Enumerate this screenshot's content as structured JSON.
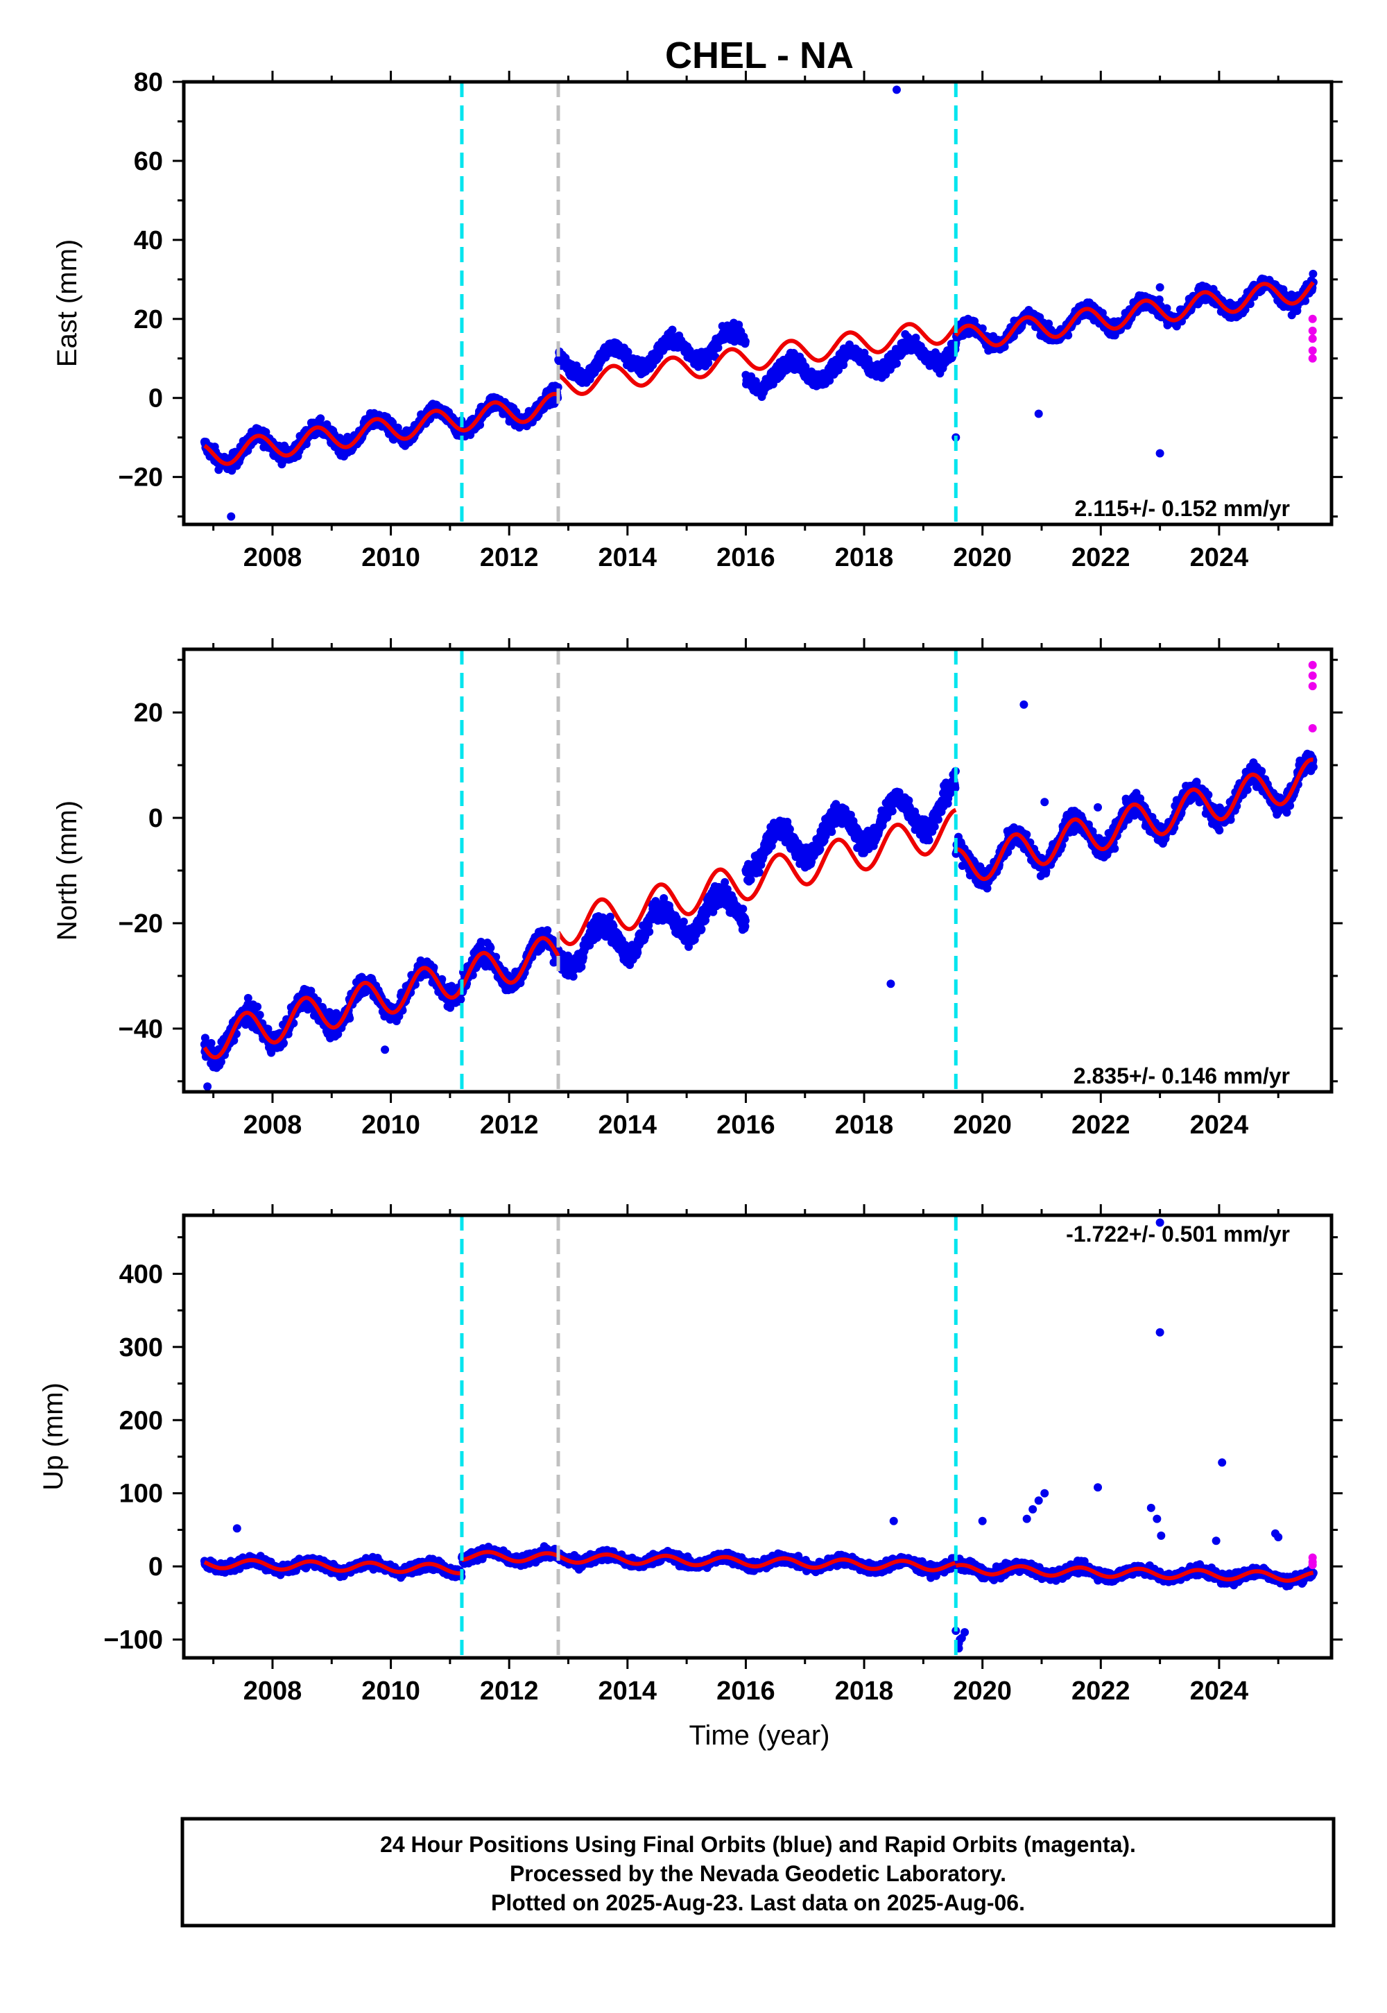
{
  "title": "CHEL - NA",
  "colors": {
    "final_orbits": "#0000ee",
    "rapid_orbits": "#ee00ee",
    "model": "#ee0000",
    "equipment_change": "#00e5ee",
    "other_event": "#c0c0c0"
  },
  "xlabel": "Time (year)",
  "x_ticks": [
    "2008",
    "2010",
    "2012",
    "2014",
    "2016",
    "2018",
    "2020",
    "2022",
    "2024"
  ],
  "footer": {
    "line1": "24 Hour Positions Using Final Orbits (blue) and Rapid Orbits (magenta).",
    "line2": "Processed by the Nevada Geodetic Laboratory.",
    "line3": "Plotted on 2025-Aug-23. Last data on 2025-Aug-06."
  },
  "chart_data": [
    {
      "type": "scatter",
      "ylabel": "East (mm)",
      "xlim": [
        2006.5,
        2025.9
      ],
      "ylim": [
        -32,
        80
      ],
      "y_ticks": [
        "80",
        "60",
        "40",
        "20",
        "0",
        "−20"
      ],
      "y_tick_values": [
        80,
        60,
        40,
        20,
        0,
        -20
      ],
      "rate": "2.115+/- 0.152 mm/yr",
      "rate_position": "bottom-right",
      "events": [
        {
          "x": 2011.2,
          "kind": "equipment_change"
        },
        {
          "x": 2012.83,
          "kind": "other_event"
        },
        {
          "x": 2019.55,
          "kind": "equipment_change"
        }
      ],
      "trend_segments": [
        {
          "x": [
            2006.85,
            2012.83
          ],
          "mean": -14.5,
          "rate": 2.115,
          "annual_amp": 3.0,
          "phase": 2006.5
        },
        {
          "x": [
            2012.83,
            2019.55
          ],
          "mean": -9.5,
          "rate": 2.115,
          "annual_amp": 3.0,
          "phase": 2006.5
        },
        {
          "x": [
            2019.55,
            2025.6
          ],
          "mean": -12.0,
          "rate": 2.115,
          "annual_amp": 3.0,
          "phase": 2006.5
        }
      ],
      "offsets": [
        {
          "x": [
            2012.83,
            2016.0
          ],
          "delta": 4.5
        },
        {
          "x": [
            2016.0,
            2019.55
          ],
          "delta": -5.0
        }
      ],
      "outliers": [
        {
          "x": 2007.3,
          "y": -30
        },
        {
          "x": 2018.55,
          "y": 78
        },
        {
          "x": 2019.55,
          "y": -10
        },
        {
          "x": 2020.1,
          "y": 12
        },
        {
          "x": 2023.0,
          "y": 28
        },
        {
          "x": 2023.0,
          "y": -14
        },
        {
          "x": 2020.95,
          "y": -4
        }
      ],
      "rapid_points": [
        {
          "x": 2025.58,
          "y": 20
        },
        {
          "x": 2025.58,
          "y": 17
        },
        {
          "x": 2025.58,
          "y": 15
        },
        {
          "x": 2025.58,
          "y": 12
        },
        {
          "x": 2025.58,
          "y": 10
        }
      ]
    },
    {
      "type": "scatter",
      "ylabel": "North (mm)",
      "xlim": [
        2006.5,
        2025.9
      ],
      "ylim": [
        -52,
        32
      ],
      "y_ticks": [
        "20",
        "0",
        "−20",
        "−40"
      ],
      "y_tick_values": [
        20,
        0,
        -20,
        -40
      ],
      "rate": "2.835+/- 0.146 mm/yr",
      "rate_position": "bottom-right",
      "events": [
        {
          "x": 2011.2,
          "kind": "equipment_change"
        },
        {
          "x": 2012.83,
          "kind": "other_event"
        },
        {
          "x": 2019.55,
          "kind": "equipment_change"
        }
      ],
      "trend_segments": [
        {
          "x": [
            2006.85,
            2012.83
          ],
          "mean": -42.5,
          "rate": 2.835,
          "annual_amp": 3.5,
          "phase": 2006.3
        },
        {
          "x": [
            2012.83,
            2019.55
          ],
          "mean": -38.0,
          "rate": 2.835,
          "annual_amp": 3.5,
          "phase": 2006.3
        },
        {
          "x": [
            2019.55,
            2025.6
          ],
          "mean": -45.5,
          "rate": 2.835,
          "annual_amp": 3.5,
          "phase": 2006.3
        }
      ],
      "offsets": [
        {
          "x": [
            2012.83,
            2016.0
          ],
          "delta": -4.5
        },
        {
          "x": [
            2016.0,
            2019.55
          ],
          "delta": 5.0
        }
      ],
      "outliers": [
        {
          "x": 2006.9,
          "y": -51
        },
        {
          "x": 2007.1,
          "y": -47
        },
        {
          "x": 2009.9,
          "y": -44
        },
        {
          "x": 2018.45,
          "y": -31.5
        },
        {
          "x": 2020.7,
          "y": 21.5
        },
        {
          "x": 2021.05,
          "y": 3
        },
        {
          "x": 2021.95,
          "y": 2
        }
      ],
      "rapid_points": [
        {
          "x": 2025.58,
          "y": 29
        },
        {
          "x": 2025.58,
          "y": 27
        },
        {
          "x": 2025.58,
          "y": 25
        },
        {
          "x": 2025.58,
          "y": 17
        }
      ]
    },
    {
      "type": "scatter",
      "ylabel": "Up (mm)",
      "xlim": [
        2006.5,
        2025.9
      ],
      "ylim": [
        -125,
        480
      ],
      "y_ticks": [
        "400",
        "300",
        "200",
        "100",
        "0",
        "−100"
      ],
      "y_tick_values": [
        400,
        300,
        200,
        100,
        0,
        -100
      ],
      "rate": "-1.722+/- 0.501 mm/yr",
      "rate_position": "top-right",
      "events": [
        {
          "x": 2011.2,
          "kind": "equipment_change"
        },
        {
          "x": 2012.83,
          "kind": "other_event"
        },
        {
          "x": 2019.55,
          "kind": "equipment_change"
        }
      ],
      "trend_segments": [
        {
          "x": [
            2006.85,
            2011.2
          ],
          "mean": 4.0,
          "rate": -1.722,
          "annual_amp": 6.0,
          "phase": 2006.4
        },
        {
          "x": [
            2011.2,
            2019.55
          ],
          "mean": 22.0,
          "rate": -1.722,
          "annual_amp": 6.0,
          "phase": 2006.4
        },
        {
          "x": [
            2019.55,
            2025.6
          ],
          "mean": 18.0,
          "rate": -1.722,
          "annual_amp": 6.0,
          "phase": 2006.4
        }
      ],
      "offsets": [],
      "outliers": [
        {
          "x": 2007.4,
          "y": 52
        },
        {
          "x": 2018.5,
          "y": 62
        },
        {
          "x": 2019.6,
          "y": -112
        },
        {
          "x": 2019.6,
          "y": -105
        },
        {
          "x": 2019.65,
          "y": -98
        },
        {
          "x": 2019.7,
          "y": -90
        },
        {
          "x": 2019.55,
          "y": -88
        },
        {
          "x": 2019.62,
          "y": -100
        },
        {
          "x": 2020.0,
          "y": 62
        },
        {
          "x": 2020.75,
          "y": 65
        },
        {
          "x": 2020.85,
          "y": 78
        },
        {
          "x": 2020.95,
          "y": 90
        },
        {
          "x": 2021.05,
          "y": 100
        },
        {
          "x": 2021.95,
          "y": 108
        },
        {
          "x": 2022.85,
          "y": 80
        },
        {
          "x": 2022.95,
          "y": 65
        },
        {
          "x": 2023.0,
          "y": 470
        },
        {
          "x": 2023.0,
          "y": 320
        },
        {
          "x": 2023.02,
          "y": 42
        },
        {
          "x": 2023.95,
          "y": 35
        },
        {
          "x": 2024.05,
          "y": 142
        },
        {
          "x": 2024.95,
          "y": 45
        },
        {
          "x": 2025.0,
          "y": 40
        }
      ],
      "rapid_points": [
        {
          "x": 2025.58,
          "y": 12
        },
        {
          "x": 2025.58,
          "y": 6
        },
        {
          "x": 2025.58,
          "y": 2
        }
      ]
    }
  ]
}
